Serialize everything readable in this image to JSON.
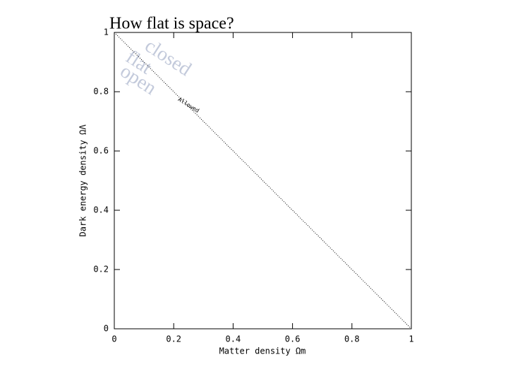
{
  "chart_data": {
    "type": "line",
    "title": "How flat is space?",
    "x_label": "Matter density Ωm",
    "y_label": "Dark energy density ΩΛ",
    "annotations": [
      "closed",
      "flat",
      "open"
    ],
    "line_label": "Allowed",
    "x": [
      0,
      1
    ],
    "series": [
      {
        "name": "Allowed",
        "color": "#000000",
        "values": [
          1,
          0
        ]
      }
    ],
    "xlim": [
      0,
      1
    ],
    "ylim": [
      0,
      1
    ],
    "xticks": [
      0,
      0.2,
      0.4,
      0.6,
      0.8,
      1
    ],
    "yticks": [
      0,
      0.2,
      0.4,
      0.6,
      0.8,
      1
    ]
  }
}
